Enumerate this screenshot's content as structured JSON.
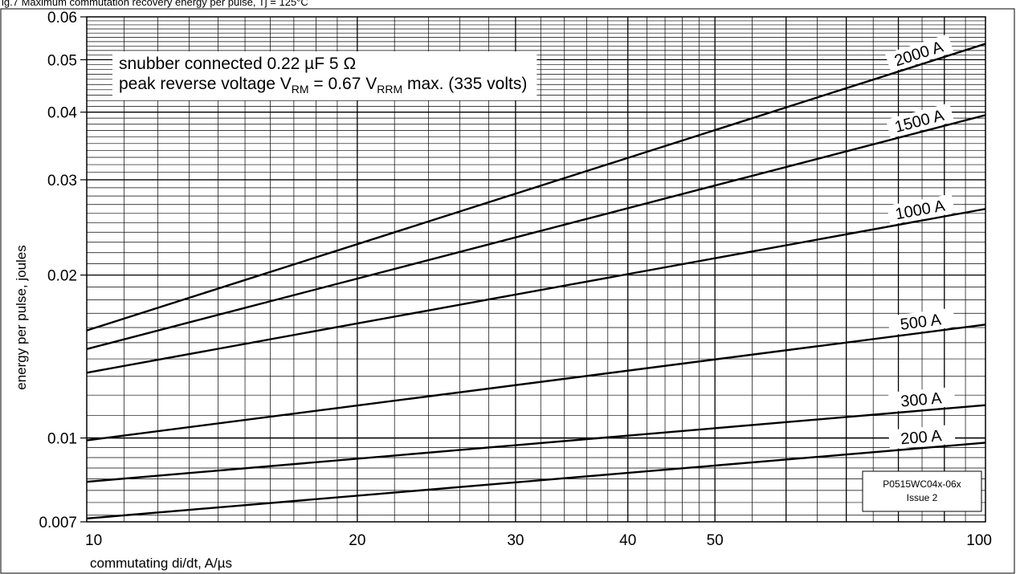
{
  "figure_caption": "ig.7 Maximum commutation recovery energy per pulse, Tj = 125°C",
  "chart_data": {
    "type": "line",
    "x_scale": "log",
    "y_scale": "log",
    "xlim": [
      10,
      100
    ],
    "ylim": [
      0.007,
      0.06
    ],
    "grid": true,
    "x_tick_labels": [
      {
        "value": 10,
        "label": "10"
      },
      {
        "value": 20,
        "label": "20"
      },
      {
        "value": 30,
        "label": "30"
      },
      {
        "value": 40,
        "label": "40"
      },
      {
        "value": 50,
        "label": "50"
      },
      {
        "value": 100,
        "label": "100"
      }
    ],
    "y_tick_labels": [
      {
        "value": 0.007,
        "label": "0.007"
      },
      {
        "value": 0.01,
        "label": "0.01"
      },
      {
        "value": 0.02,
        "label": "0.02"
      },
      {
        "value": 0.03,
        "label": "0.03"
      },
      {
        "value": 0.04,
        "label": "0.04"
      },
      {
        "value": 0.05,
        "label": "0.05"
      },
      {
        "value": 0.06,
        "label": "0.06"
      }
    ],
    "xlabel": "commutating di/dt, A/µs",
    "ylabel": "energy per pulse, joules",
    "annotations": {
      "line1": "snubber connected 0.22 µF 5 Ω",
      "line2_prefix": "peak reverse voltage V",
      "line2_sub1": "RM",
      "line2_mid": " = 0.67 V",
      "line2_sub2": "RRM",
      "line2_suffix": " max. (335 volts)"
    },
    "code_box": {
      "line1": "P0515WC04x-06x",
      "line2": "Issue 2"
    },
    "series": [
      {
        "name": "2000 A",
        "x": [
          10,
          100
        ],
        "y": [
          0.0158,
          0.0535
        ]
      },
      {
        "name": "1500 A",
        "x": [
          10,
          100
        ],
        "y": [
          0.0146,
          0.0395
        ]
      },
      {
        "name": "1000 A",
        "x": [
          10,
          100
        ],
        "y": [
          0.0132,
          0.0265
        ]
      },
      {
        "name": "500 A",
        "x": [
          10,
          100
        ],
        "y": [
          0.0099,
          0.0162
        ]
      },
      {
        "name": "300 A",
        "x": [
          10,
          100
        ],
        "y": [
          0.0083,
          0.0115
        ]
      },
      {
        "name": "200 A",
        "x": [
          10,
          100
        ],
        "y": [
          0.0071,
          0.0098
        ]
      }
    ]
  }
}
